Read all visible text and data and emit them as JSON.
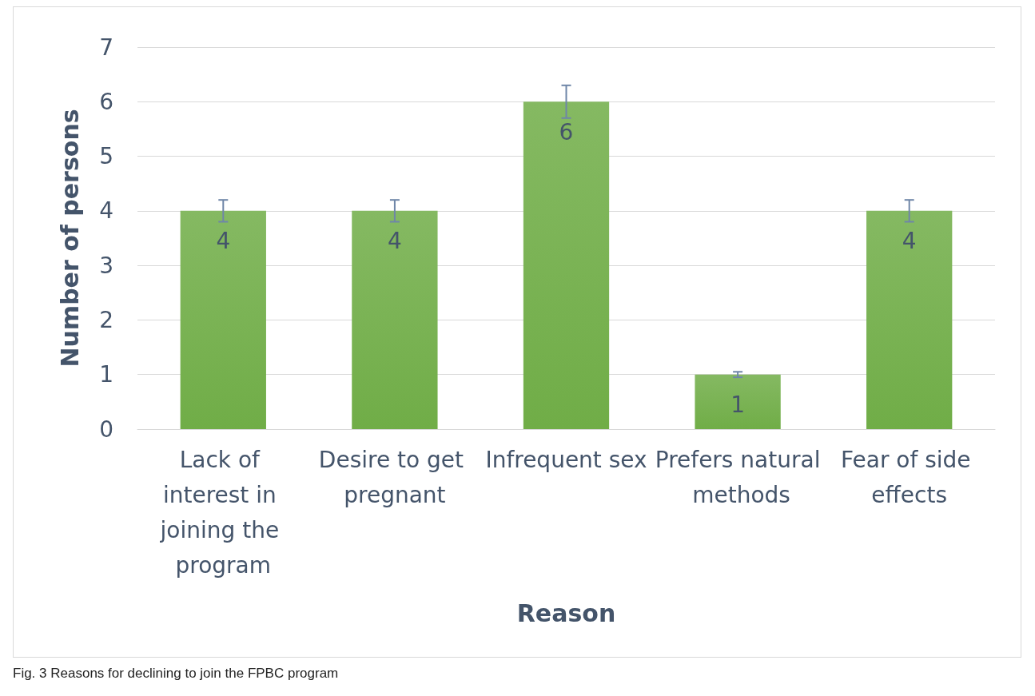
{
  "chart_data": {
    "type": "bar",
    "xlabel": "Reason",
    "ylabel": "Number of persons",
    "categories": [
      "Lack of interest in joining the program",
      "Desire to get pregnant",
      "Infrequent sex",
      "Prefers natural methods",
      "Fear of side effects"
    ],
    "values": [
      4,
      4,
      6,
      1,
      4
    ],
    "errors": [
      0.2,
      0.2,
      0.3,
      0.05,
      0.2
    ],
    "color": "#70ad47",
    "ylim": [
      0,
      7
    ],
    "yticks": [
      0,
      1,
      2,
      3,
      4,
      5,
      6,
      7
    ],
    "grid": "y",
    "data_labels": true,
    "annotations": [
      "Fig. 3 Reasons for declining to join the FPBC program"
    ]
  }
}
